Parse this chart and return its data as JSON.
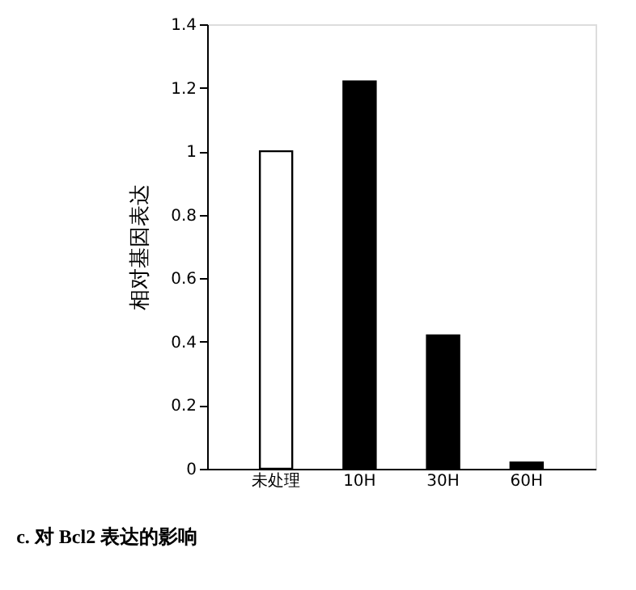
{
  "chart_data": {
    "type": "bar",
    "title": "c. 对 Bcl2 表达的影响",
    "ylabel": "相对基因表达",
    "categories": [
      "未处理",
      "10H",
      "30H",
      "60H"
    ],
    "values": [
      1.0,
      1.22,
      0.42,
      0.02
    ],
    "colors": [
      "#ffffff",
      "#000000",
      "#000000",
      "#000000"
    ],
    "ylim": [
      0,
      1.4
    ],
    "yticks": [
      0,
      0.2,
      0.4,
      0.6,
      0.8,
      1,
      1.2,
      1.4
    ],
    "grid": false
  }
}
